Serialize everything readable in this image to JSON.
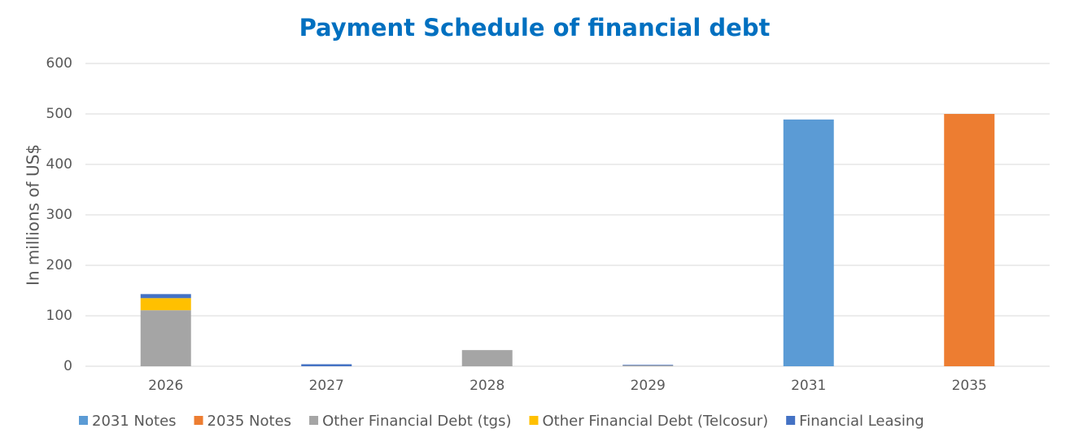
{
  "chart_data": {
    "type": "stacked_bar",
    "title": "Payment Schedule of financial debt",
    "y_label": "In millions of US$",
    "categories": [
      "2026",
      "2027",
      "2028",
      "2029",
      "2031",
      "2035"
    ],
    "series": [
      {
        "name": "2031 Notes",
        "color": "#5b9bd5",
        "values": [
          null,
          null,
          null,
          null,
          489,
          null
        ]
      },
      {
        "name": "2035 Notes",
        "color": "#ed7d31",
        "values": [
          null,
          null,
          null,
          null,
          null,
          500
        ]
      },
      {
        "name": "Other Financial Debt (tgs)",
        "color": "#a5a5a5",
        "values": [
          111,
          null,
          32,
          2,
          null,
          null
        ]
      },
      {
        "name": "Other Financial Debt (Telcosur)",
        "color": "#ffc000",
        "values": [
          24,
          null,
          null,
          null,
          null,
          null
        ]
      },
      {
        "name": "Financial Leasing",
        "color": "#4472c4",
        "values": [
          8,
          4,
          null,
          1,
          null,
          null
        ]
      }
    ],
    "ylim": [
      0,
      600
    ],
    "yticks": [
      0,
      100,
      200,
      300,
      400,
      500,
      600
    ],
    "grid": true,
    "legend": "bottom"
  }
}
